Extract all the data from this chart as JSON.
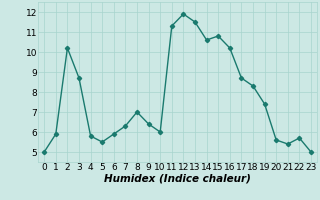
{
  "x": [
    0,
    1,
    2,
    3,
    4,
    5,
    6,
    7,
    8,
    9,
    10,
    11,
    12,
    13,
    14,
    15,
    16,
    17,
    18,
    19,
    20,
    21,
    22,
    23
  ],
  "y": [
    5.0,
    5.9,
    10.2,
    8.7,
    5.8,
    5.5,
    5.9,
    6.3,
    7.0,
    6.4,
    6.0,
    11.3,
    11.9,
    11.5,
    10.6,
    10.8,
    10.2,
    8.7,
    8.3,
    7.4,
    5.6,
    5.4,
    5.7,
    5.0
  ],
  "line_color": "#1a7a6e",
  "marker": "D",
  "marker_size": 2.2,
  "line_width": 1.0,
  "bg_color": "#cce8e4",
  "grid_color": "#a8d4ce",
  "xlabel": "Humidex (Indice chaleur)",
  "xlabel_fontsize": 7.5,
  "ylim": [
    4.5,
    12.5
  ],
  "xlim": [
    -0.5,
    23.5
  ],
  "yticks": [
    5,
    6,
    7,
    8,
    9,
    10,
    11,
    12
  ],
  "xticks": [
    0,
    1,
    2,
    3,
    4,
    5,
    6,
    7,
    8,
    9,
    10,
    11,
    12,
    13,
    14,
    15,
    16,
    17,
    18,
    19,
    20,
    21,
    22,
    23
  ],
  "tick_fontsize": 6.5
}
